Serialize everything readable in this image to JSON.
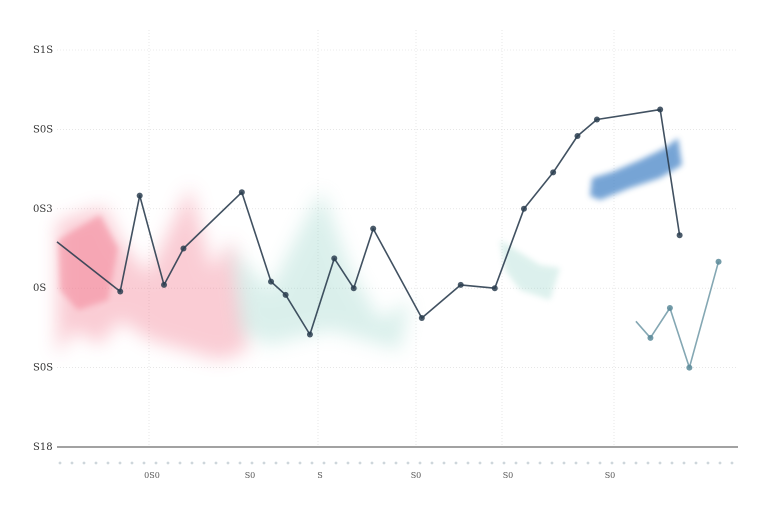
{
  "colors": {
    "primary_line": "#2c3e50",
    "secondary_line": "#5b8a99",
    "wash_pink": "#f27a8f",
    "wash_teal": "#8fd0c4",
    "wash_blue": "#4a86c8",
    "gridline": "#d8d8d8",
    "axis": "#444444",
    "background": "#ffffff"
  },
  "chart_data": {
    "type": "line",
    "title": "",
    "xlabel": "",
    "ylabel": "",
    "y_tick_labels": [
      "S18",
      "S0S",
      "0S",
      "0S3",
      "S0S",
      "S1S"
    ],
    "x_tick_labels": [
      "0S0",
      "S0",
      "S",
      "S0",
      "S0",
      "S0"
    ],
    "grid": true,
    "legend": "none",
    "xlim": [
      0,
      14
    ],
    "ylim": [
      0,
      6
    ],
    "series": [
      {
        "x": [
          0,
          1.3,
          1.7,
          2.2,
          2.6,
          3.8,
          4.4,
          4.7,
          5.2,
          5.7,
          6.1,
          6.5,
          7.5,
          8.3,
          9.0,
          9.6,
          10.2,
          10.7,
          11.1,
          12.4,
          12.8
        ],
        "y": [
          3.1,
          2.35,
          3.8,
          2.45,
          3.0,
          3.85,
          2.5,
          2.3,
          1.7,
          2.85,
          2.4,
          3.3,
          1.95,
          2.45,
          2.4,
          3.6,
          4.15,
          4.7,
          4.95,
          5.1,
          3.2
        ]
      },
      {
        "x": [
          11.9,
          12.2,
          12.6,
          13.0,
          13.6
        ],
        "y": [
          1.9,
          1.65,
          2.1,
          1.2,
          2.8
        ]
      }
    ]
  }
}
